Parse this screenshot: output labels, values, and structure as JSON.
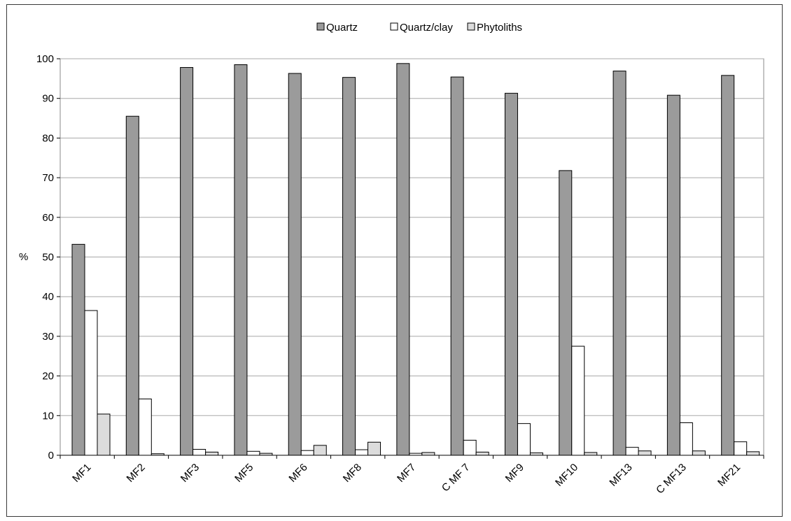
{
  "chart_data": {
    "type": "bar",
    "title": "",
    "xlabel": "",
    "ylabel": "%",
    "ylim": [
      0,
      100
    ],
    "yticks": [
      0,
      10,
      20,
      30,
      40,
      50,
      60,
      70,
      80,
      90,
      100
    ],
    "grid": true,
    "legend_position": "top",
    "categories": [
      "MF1",
      "MF2",
      "MF3",
      "MF5",
      "MF6",
      "MF8",
      "MF7",
      "C MF 7",
      "MF9",
      "MF10",
      "MF13",
      "C MF13",
      "MF21"
    ],
    "series": [
      {
        "name": "Quartz",
        "color": "#9b9b9b",
        "values": [
          53.2,
          85.5,
          97.8,
          98.5,
          96.3,
          95.3,
          98.8,
          95.4,
          91.3,
          71.8,
          96.9,
          90.8,
          95.8
        ]
      },
      {
        "name": "Quartz/clay",
        "color": "#ffffff",
        "values": [
          36.5,
          14.2,
          1.5,
          1.0,
          1.2,
          1.4,
          0.5,
          3.8,
          8.0,
          27.5,
          2.0,
          8.2,
          3.4
        ]
      },
      {
        "name": "Phytoliths",
        "color": "#dcdcdc",
        "values": [
          10.4,
          0.4,
          0.8,
          0.5,
          2.5,
          3.3,
          0.7,
          0.8,
          0.6,
          0.7,
          1.1,
          1.1,
          0.9
        ]
      }
    ]
  }
}
